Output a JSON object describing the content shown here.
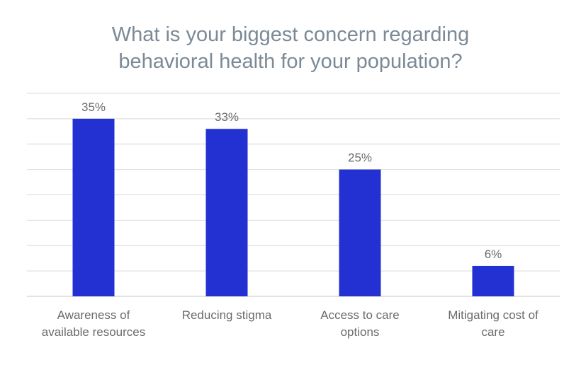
{
  "chart_data": {
    "type": "bar",
    "title_lines": [
      "What is your biggest concern regarding",
      "behavioral health for your population?"
    ],
    "categories": [
      [
        "Awareness of",
        "available resources"
      ],
      [
        "Reducing stigma"
      ],
      [
        "Access to care",
        "options"
      ],
      [
        "Mitigating cost of",
        "care"
      ]
    ],
    "values": [
      35,
      33,
      25,
      6
    ],
    "value_labels": [
      "35%",
      "33%",
      "25%",
      "6%"
    ],
    "ylim": [
      0,
      40
    ],
    "grid": true,
    "legend": "none",
    "colors": {
      "bar": "#2331d2",
      "grid": "#d9d9d9",
      "title": "#7b8a96",
      "text": "#6b6b6b"
    }
  }
}
